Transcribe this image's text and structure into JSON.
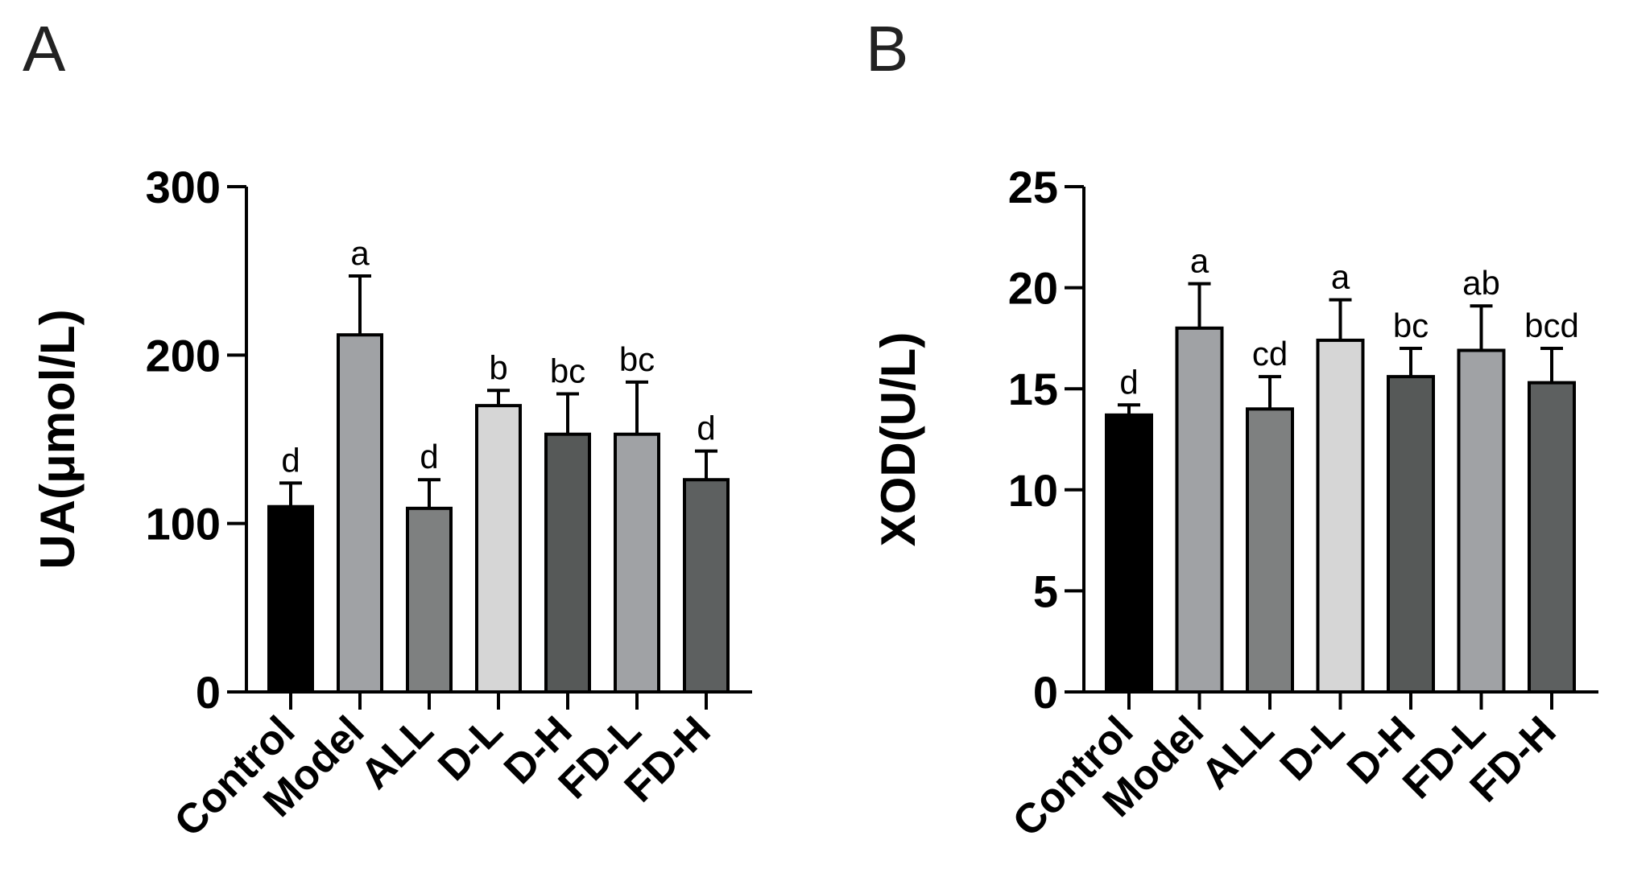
{
  "chart_data": [
    {
      "panel": "A",
      "type": "bar",
      "title": "",
      "xlabel": "",
      "ylabel": "UA(μmol/L)",
      "ylim": [
        0,
        300
      ],
      "yticks": [
        0,
        100,
        200,
        300
      ],
      "categories": [
        "Control",
        "Model",
        "ALL",
        "D-L",
        "D-H",
        "FD-L",
        "FD-H"
      ],
      "values": [
        110,
        212,
        109,
        170,
        153,
        153,
        126
      ],
      "errors": [
        14,
        35,
        17,
        9,
        24,
        31,
        17
      ],
      "significance": [
        "d",
        "a",
        "d",
        "b",
        "bc",
        "bc",
        "d"
      ],
      "colors": [
        "#000000",
        "#a0a2a5",
        "#7e8080",
        "#d6d6d6",
        "#565958",
        "#a0a2a5",
        "#5d6060"
      ]
    },
    {
      "panel": "B",
      "type": "bar",
      "title": "",
      "xlabel": "",
      "ylabel": "XOD(U/L)",
      "ylim": [
        0,
        25
      ],
      "yticks": [
        0,
        5,
        10,
        15,
        20,
        25
      ],
      "categories": [
        "Control",
        "Model",
        "ALL",
        "D-L",
        "D-H",
        "FD-L",
        "FD-H"
      ],
      "values": [
        13.7,
        18.0,
        14.0,
        17.4,
        15.6,
        16.9,
        15.3
      ],
      "errors": [
        0.5,
        2.2,
        1.6,
        2.0,
        1.4,
        2.2,
        1.7
      ],
      "significance": [
        "d",
        "a",
        "cd",
        "a",
        "bc",
        "ab",
        "bcd"
      ],
      "colors": [
        "#000000",
        "#a0a2a5",
        "#7e8080",
        "#d6d6d6",
        "#565958",
        "#a0a2a5",
        "#5d6060"
      ]
    }
  ]
}
